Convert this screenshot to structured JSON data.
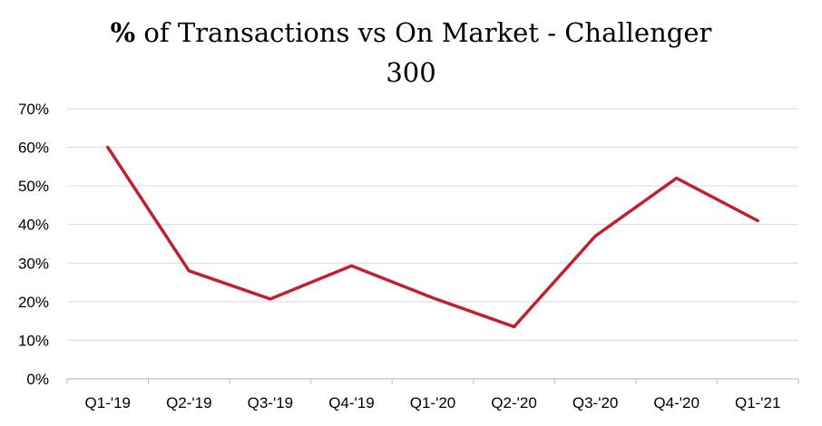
{
  "chart_data": {
    "type": "line",
    "title_prefix": "%",
    "title_rest": " of Transactions vs On Market - Challenger",
    "title_line2": "300",
    "xlabel": "",
    "ylabel": "",
    "categories": [
      "Q1-'19",
      "Q2-'19",
      "Q3-'19",
      "Q4-'19",
      "Q1-'20",
      "Q2-'20",
      "Q3-'20",
      "Q4-'20",
      "Q1-'21"
    ],
    "series": [
      {
        "values": [
          0.6,
          0.28,
          0.207,
          0.293,
          0.21,
          0.135,
          0.37,
          0.52,
          0.41
        ],
        "color": "#C0202F"
      }
    ],
    "ylim": [
      0,
      0.7
    ],
    "yticks": [
      "0%",
      "10%",
      "20%",
      "30%",
      "40%",
      "50%",
      "60%",
      "70%"
    ],
    "grid": true,
    "legend": "none",
    "colors": {
      "line": "#C0202F",
      "grid": "#d9d9d9",
      "axis": "#bfbfbf"
    }
  }
}
